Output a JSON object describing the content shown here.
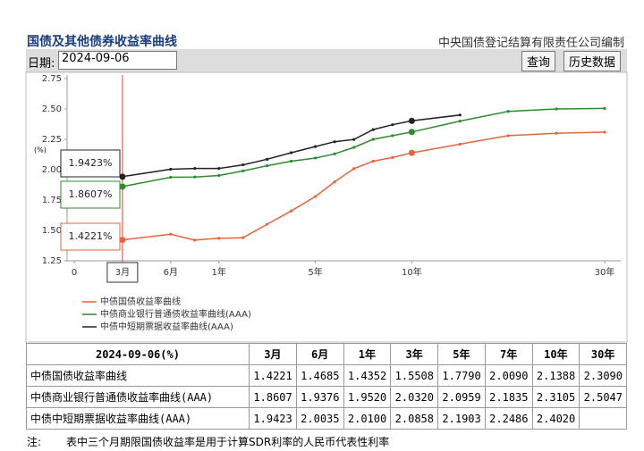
{
  "header": {
    "title": "国债及其他债券收益率曲线",
    "source": "中央国债登记结算有限责任公司编制",
    "date_label": "日期:",
    "date_value": "2024-09-06",
    "buttons": [
      "查询",
      "历史数据"
    ]
  },
  "chart_data": {
    "type": "line",
    "y_label": "(%)",
    "x": [
      0.25,
      0.5,
      0.75,
      1,
      2,
      3,
      4,
      5,
      6,
      7,
      8,
      9,
      10,
      15,
      20,
      25,
      30
    ],
    "series": [
      {
        "name": "中债国债收益率曲线",
        "color": "#e8643c",
        "values": [
          1.4221,
          1.4685,
          1.42,
          1.4352,
          1.44,
          1.5508,
          1.66,
          1.779,
          1.9,
          2.009,
          2.07,
          2.1,
          2.1388,
          2.21,
          2.28,
          2.3,
          2.309
        ]
      },
      {
        "name": "中债商业银行普通债收益率曲线(AAA)",
        "color": "#2e8b2e",
        "values": [
          1.8607,
          1.9376,
          1.94,
          1.952,
          1.99,
          2.032,
          2.07,
          2.0959,
          2.13,
          2.1835,
          2.25,
          2.28,
          2.3105,
          2.4,
          2.48,
          2.5,
          2.5047
        ]
      },
      {
        "name": "中债中短期票据收益率曲线(AAA)",
        "color": "#222222",
        "values": [
          1.9423,
          2.0035,
          2.01,
          2.01,
          2.04,
          2.0858,
          2.14,
          2.1903,
          2.23,
          2.2486,
          2.33,
          2.37,
          2.402,
          2.45,
          null,
          null,
          null
        ]
      }
    ],
    "xlim": [
      0,
      30
    ],
    "xticks": [
      0,
      {
        "value": 0.25,
        "label": "3月"
      },
      {
        "value": 0.5,
        "label": "6月"
      },
      {
        "value": 1,
        "label": "1年"
      },
      {
        "value": 5,
        "label": "5年"
      },
      {
        "value": 10,
        "label": "10年"
      },
      {
        "value": 30,
        "label": "30年"
      }
    ],
    "ylim": [
      1.25,
      2.75
    ],
    "yticks": [
      1.25,
      {
        "value": 1.5,
        "label": "1.50"
      },
      1.75,
      {
        "value": 2,
        "label": "2.00"
      },
      2.25,
      {
        "value": 2.5,
        "label": "2.50"
      },
      2.75
    ],
    "tooltip": {
      "labels": [
        "1.4221%",
        "1.8607%",
        "1.9423%"
      ]
    }
  },
  "table": {
    "header": [
      "2024-09-06(%)",
      "3月",
      "6月",
      "1年",
      "3年",
      "5年",
      "7年",
      "10年",
      "30年"
    ],
    "rows": [
      [
        "中债国债收益率曲线",
        "1.4221",
        "1.4685",
        "1.4352",
        "1.5508",
        "1.7790",
        "2.0090",
        "2.1388",
        "2.3090"
      ],
      [
        "中债商业银行普通债收益率曲线(AAA)",
        "1.8607",
        "1.9376",
        "1.9520",
        "2.0320",
        "2.0959",
        "2.1835",
        "2.3105",
        "2.5047"
      ],
      [
        "中债中短期票据收益率曲线(AAA)",
        "1.9423",
        "2.0035",
        "2.0100",
        "2.0858",
        "2.1903",
        "2.2486",
        "2.4020",
        ""
      ]
    ]
  },
  "note": {
    "label": "注:",
    "text": "表中三个月期限国债收益率是用于计算SDR利率的人民币代表性利率"
  }
}
